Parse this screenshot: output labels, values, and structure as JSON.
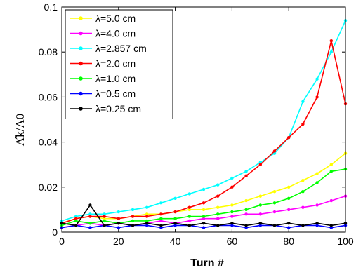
{
  "chart_data": {
    "type": "line",
    "xlabel": "Turn #",
    "ylabel": "Λ̂k/Λ0",
    "xlim": [
      0,
      100
    ],
    "ylim": [
      0,
      0.1
    ],
    "xticks": [
      "0",
      "20",
      "40",
      "60",
      "80",
      "100"
    ],
    "yticks": [
      "0",
      "0.02",
      "0.04",
      "0.06",
      "0.08",
      "0.1"
    ],
    "legend_position": "top-left",
    "grid": false,
    "series": [
      {
        "name": "λ=5.0 cm",
        "color": "#ffff00",
        "x": [
          0,
          5,
          10,
          15,
          20,
          25,
          30,
          35,
          40,
          45,
          50,
          55,
          60,
          65,
          70,
          75,
          80,
          85,
          90,
          95,
          100
        ],
        "y": [
          0.004,
          0.006,
          0.007,
          0.006,
          0.006,
          0.007,
          0.008,
          0.008,
          0.009,
          0.01,
          0.01,
          0.011,
          0.012,
          0.014,
          0.016,
          0.018,
          0.02,
          0.023,
          0.026,
          0.03,
          0.035
        ]
      },
      {
        "name": "λ=4.0 cm",
        "color": "#ff00ff",
        "x": [
          0,
          5,
          10,
          15,
          20,
          25,
          30,
          35,
          40,
          45,
          50,
          55,
          60,
          65,
          70,
          75,
          80,
          85,
          90,
          95,
          100
        ],
        "y": [
          0.002,
          0.003,
          0.004,
          0.003,
          0.004,
          0.003,
          0.004,
          0.005,
          0.004,
          0.005,
          0.006,
          0.006,
          0.007,
          0.008,
          0.008,
          0.009,
          0.01,
          0.011,
          0.012,
          0.014,
          0.016
        ]
      },
      {
        "name": "λ=2.857 cm",
        "color": "#00ffff",
        "x": [
          0,
          5,
          10,
          15,
          20,
          25,
          30,
          35,
          40,
          45,
          50,
          55,
          60,
          65,
          70,
          75,
          80,
          85,
          90,
          95,
          100
        ],
        "y": [
          0.005,
          0.007,
          0.008,
          0.008,
          0.009,
          0.01,
          0.011,
          0.013,
          0.015,
          0.017,
          0.019,
          0.021,
          0.024,
          0.027,
          0.031,
          0.035,
          0.042,
          0.058,
          0.068,
          0.08,
          0.094
        ]
      },
      {
        "name": "λ=2.0 cm",
        "color": "#ff0000",
        "x": [
          0,
          5,
          10,
          15,
          20,
          25,
          30,
          35,
          40,
          45,
          50,
          55,
          60,
          65,
          70,
          75,
          80,
          85,
          90,
          95,
          100
        ],
        "y": [
          0.004,
          0.006,
          0.007,
          0.007,
          0.006,
          0.007,
          0.007,
          0.008,
          0.009,
          0.011,
          0.013,
          0.016,
          0.02,
          0.025,
          0.03,
          0.036,
          0.042,
          0.048,
          0.06,
          0.085,
          0.057
        ]
      },
      {
        "name": "λ=1.0 cm",
        "color": "#00ff00",
        "x": [
          0,
          5,
          10,
          15,
          20,
          25,
          30,
          35,
          40,
          45,
          50,
          55,
          60,
          65,
          70,
          75,
          80,
          85,
          90,
          95,
          100
        ],
        "y": [
          0.003,
          0.005,
          0.004,
          0.005,
          0.004,
          0.005,
          0.005,
          0.006,
          0.006,
          0.007,
          0.007,
          0.008,
          0.009,
          0.01,
          0.012,
          0.013,
          0.015,
          0.018,
          0.022,
          0.027,
          0.028
        ]
      },
      {
        "name": "λ=0.5 cm",
        "color": "#0000ff",
        "x": [
          0,
          5,
          10,
          15,
          20,
          25,
          30,
          35,
          40,
          45,
          50,
          55,
          60,
          65,
          70,
          75,
          80,
          85,
          90,
          95,
          100
        ],
        "y": [
          0.002,
          0.003,
          0.002,
          0.003,
          0.002,
          0.003,
          0.003,
          0.002,
          0.003,
          0.003,
          0.002,
          0.003,
          0.003,
          0.002,
          0.003,
          0.003,
          0.002,
          0.003,
          0.003,
          0.002,
          0.003
        ]
      },
      {
        "name": "λ=0.25 cm",
        "color": "#000000",
        "x": [
          0,
          5,
          10,
          15,
          20,
          25,
          30,
          35,
          40,
          45,
          50,
          55,
          60,
          65,
          70,
          75,
          80,
          85,
          90,
          95,
          100
        ],
        "y": [
          0.004,
          0.003,
          0.012,
          0.003,
          0.004,
          0.003,
          0.004,
          0.003,
          0.004,
          0.003,
          0.004,
          0.003,
          0.004,
          0.003,
          0.004,
          0.003,
          0.004,
          0.003,
          0.004,
          0.003,
          0.004
        ]
      }
    ]
  }
}
